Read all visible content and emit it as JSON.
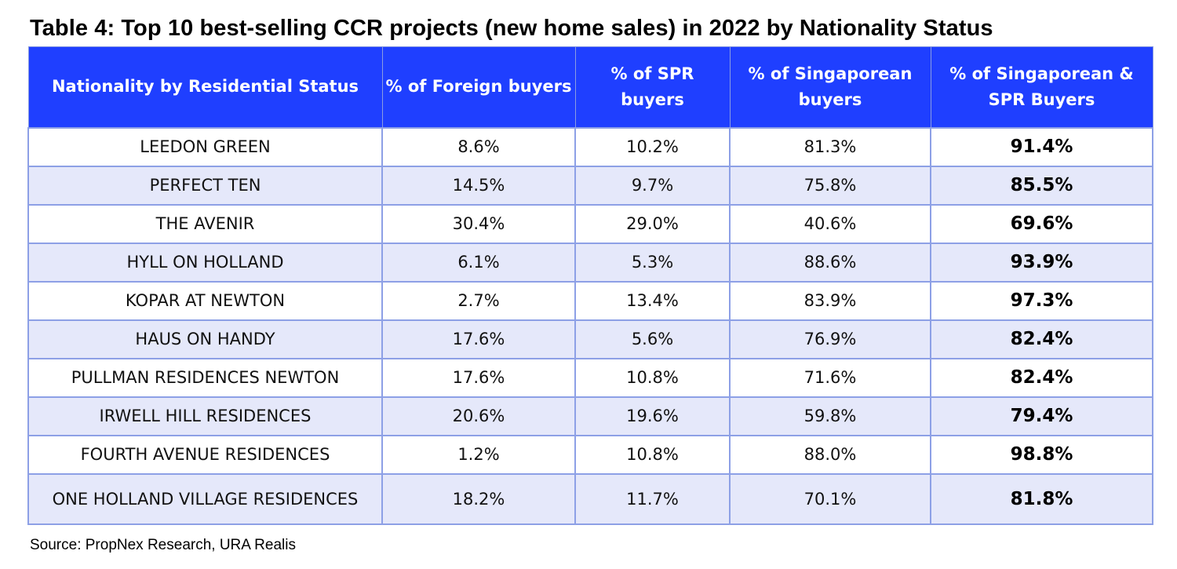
{
  "title": "Table 4: Top 10 best-selling CCR projects (new home sales) in 2022 by Nationality Status",
  "headers": [
    "Nationality by Residential Status",
    "% of Foreign buyers",
    "% of SPR buyers",
    "% of Singaporean buyers",
    "% of Singaporean & SPR Buyers"
  ],
  "rows": [
    {
      "project": "LEEDON GREEN",
      "foreign": "8.6%",
      "spr": "10.2%",
      "singaporean": "81.3%",
      "sg_spr": "91.4%"
    },
    {
      "project": "PERFECT TEN",
      "foreign": "14.5%",
      "spr": "9.7%",
      "singaporean": "75.8%",
      "sg_spr": "85.5%"
    },
    {
      "project": "THE AVENIR",
      "foreign": "30.4%",
      "spr": "29.0%",
      "singaporean": "40.6%",
      "sg_spr": "69.6%"
    },
    {
      "project": "HYLL ON HOLLAND",
      "foreign": "6.1%",
      "spr": "5.3%",
      "singaporean": "88.6%",
      "sg_spr": "93.9%"
    },
    {
      "project": "KOPAR AT NEWTON",
      "foreign": "2.7%",
      "spr": "13.4%",
      "singaporean": "83.9%",
      "sg_spr": "97.3%"
    },
    {
      "project": "HAUS ON HANDY",
      "foreign": "17.6%",
      "spr": "5.6%",
      "singaporean": "76.9%",
      "sg_spr": "82.4%"
    },
    {
      "project": "PULLMAN RESIDENCES NEWTON",
      "foreign": "17.6%",
      "spr": "10.8%",
      "singaporean": "71.6%",
      "sg_spr": "82.4%"
    },
    {
      "project": "IRWELL HILL RESIDENCES",
      "foreign": "20.6%",
      "spr": "19.6%",
      "singaporean": "59.8%",
      "sg_spr": "79.4%"
    },
    {
      "project": "FOURTH AVENUE RESIDENCES",
      "foreign": "1.2%",
      "spr": "10.8%",
      "singaporean": "88.0%",
      "sg_spr": "98.8%"
    },
    {
      "project": "ONE HOLLAND VILLAGE RESIDENCES",
      "foreign": "18.2%",
      "spr": "11.7%",
      "singaporean": "70.1%",
      "sg_spr": "81.8%"
    }
  ],
  "source": "Source: PropNex Research, URA Realis",
  "colors": {
    "header_bg": "#1f3fff",
    "header_text": "#ffffff",
    "row_alt_bg": "#e5e8fa",
    "border": "#8da0e6"
  }
}
